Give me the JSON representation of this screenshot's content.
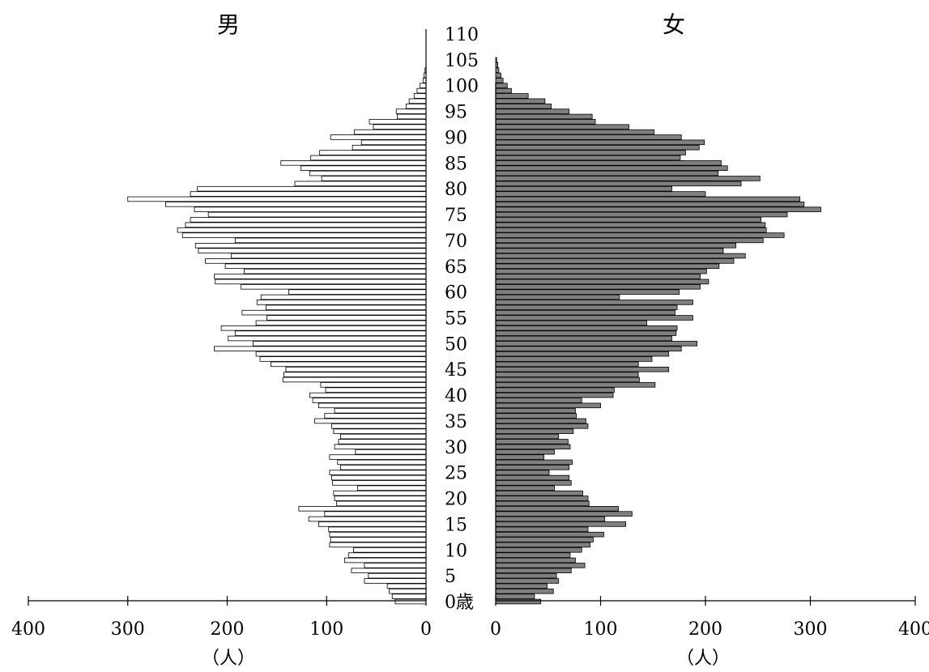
{
  "chart_data": {
    "type": "bar",
    "subtype": "population-pyramid",
    "left_title": "男",
    "right_title": "女",
    "unit_label": "（人）",
    "age_suffix": "歳",
    "age_labels": [
      "0",
      "5",
      "10",
      "15",
      "20",
      "25",
      "30",
      "35",
      "40",
      "45",
      "50",
      "55",
      "60",
      "65",
      "70",
      "75",
      "80",
      "85",
      "90",
      "95",
      "100",
      "105",
      "110"
    ],
    "x_ticks": [
      400,
      300,
      200,
      100,
      0
    ],
    "xlim": [
      0,
      400
    ],
    "ages": [
      0,
      1,
      2,
      3,
      4,
      5,
      6,
      7,
      8,
      9,
      10,
      11,
      12,
      13,
      14,
      15,
      16,
      17,
      18,
      19,
      20,
      21,
      22,
      23,
      24,
      25,
      26,
      27,
      28,
      29,
      30,
      31,
      32,
      33,
      34,
      35,
      36,
      37,
      38,
      39,
      40,
      41,
      42,
      43,
      44,
      45,
      46,
      47,
      48,
      49,
      50,
      51,
      52,
      53,
      54,
      55,
      56,
      57,
      58,
      59,
      60,
      61,
      62,
      63,
      64,
      65,
      66,
      67,
      68,
      69,
      70,
      71,
      72,
      73,
      74,
      75,
      76,
      77,
      78,
      79,
      80,
      81,
      82,
      83,
      84,
      85,
      86,
      87,
      88,
      89,
      90,
      91,
      92,
      93,
      94,
      95,
      96,
      97,
      98,
      99,
      100,
      101,
      102,
      103,
      104,
      105,
      106,
      107,
      108,
      109,
      110
    ],
    "series": [
      {
        "name": "男",
        "side": "left",
        "color": "#ffffff",
        "values": [
          31,
          34,
          37,
          39,
          62,
          58,
          75,
          62,
          82,
          78,
          73,
          97,
          96,
          97,
          98,
          108,
          118,
          102,
          128,
          90,
          92,
          93,
          69,
          94,
          95,
          97,
          86,
          89,
          97,
          71,
          92,
          88,
          86,
          93,
          95,
          112,
          102,
          92,
          108,
          114,
          117,
          101,
          106,
          144,
          143,
          141,
          156,
          167,
          171,
          213,
          174,
          199,
          192,
          206,
          171,
          160,
          185,
          161,
          170,
          166,
          138,
          186,
          212,
          213,
          183,
          202,
          222,
          196,
          229,
          232,
          192,
          245,
          250,
          242,
          237,
          219,
          233,
          262,
          300,
          237,
          230,
          132,
          105,
          117,
          126,
          146,
          116,
          107,
          74,
          65,
          96,
          72,
          53,
          57,
          29,
          30,
          20,
          17,
          12,
          9,
          6,
          3,
          2,
          1,
          0,
          0,
          0,
          0,
          0,
          0,
          0
        ]
      },
      {
        "name": "女",
        "side": "right",
        "color": "#808080",
        "values": [
          43,
          37,
          55,
          49,
          60,
          58,
          72,
          85,
          76,
          71,
          82,
          90,
          93,
          103,
          88,
          124,
          104,
          130,
          117,
          89,
          88,
          83,
          56,
          72,
          70,
          51,
          70,
          73,
          46,
          56,
          71,
          69,
          60,
          74,
          88,
          86,
          77,
          76,
          100,
          82,
          112,
          113,
          152,
          137,
          136,
          165,
          136,
          149,
          165,
          177,
          192,
          168,
          172,
          173,
          144,
          188,
          171,
          173,
          188,
          118,
          175,
          195,
          203,
          195,
          201,
          213,
          227,
          238,
          217,
          229,
          255,
          275,
          258,
          257,
          253,
          278,
          310,
          294,
          290,
          200,
          168,
          234,
          252,
          212,
          221,
          215,
          176,
          181,
          194,
          199,
          177,
          151,
          127,
          95,
          92,
          70,
          53,
          47,
          31,
          15,
          11,
          7,
          5,
          3,
          2,
          1,
          0,
          0,
          0,
          0,
          0
        ]
      }
    ]
  }
}
